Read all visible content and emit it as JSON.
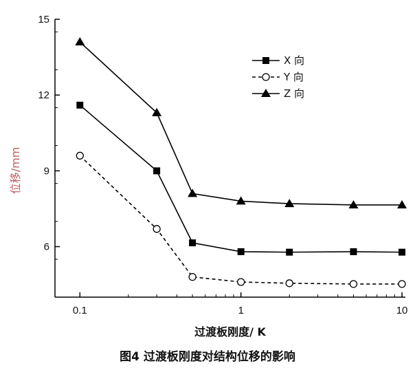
{
  "caption": "图4  过渡板刚度对结构位移的影响",
  "chart_data": {
    "type": "line",
    "xscale": "log",
    "xlabel": "过渡板刚度/ K",
    "ylabel": "位移/mm",
    "xlim": [
      0.07,
      10.5
    ],
    "ylim": [
      4.0,
      15
    ],
    "xticks": [
      0.1,
      1,
      10
    ],
    "xtick_labels": [
      "0.1",
      "1",
      "10"
    ],
    "yticks": [
      6,
      9,
      12,
      15
    ],
    "ytick_labels": [
      "6",
      "9",
      "12",
      "15"
    ],
    "grid": false,
    "legend_position": "top-right",
    "x": [
      0.1,
      0.3,
      0.5,
      1,
      2,
      5,
      10
    ],
    "series": [
      {
        "name": "X 向",
        "marker": "square",
        "line": "solid",
        "color": "#000000",
        "values": [
          11.6,
          9.0,
          6.15,
          5.8,
          5.78,
          5.8,
          5.78
        ]
      },
      {
        "name": "Y 向",
        "marker": "circle-open",
        "line": "dashed",
        "color": "#000000",
        "values": [
          9.6,
          6.7,
          4.8,
          4.6,
          4.55,
          4.52,
          4.52
        ]
      },
      {
        "name": "Z 向",
        "marker": "triangle",
        "line": "solid",
        "color": "#000000",
        "values": [
          14.1,
          11.3,
          8.1,
          7.8,
          7.7,
          7.65,
          7.65
        ]
      }
    ]
  }
}
